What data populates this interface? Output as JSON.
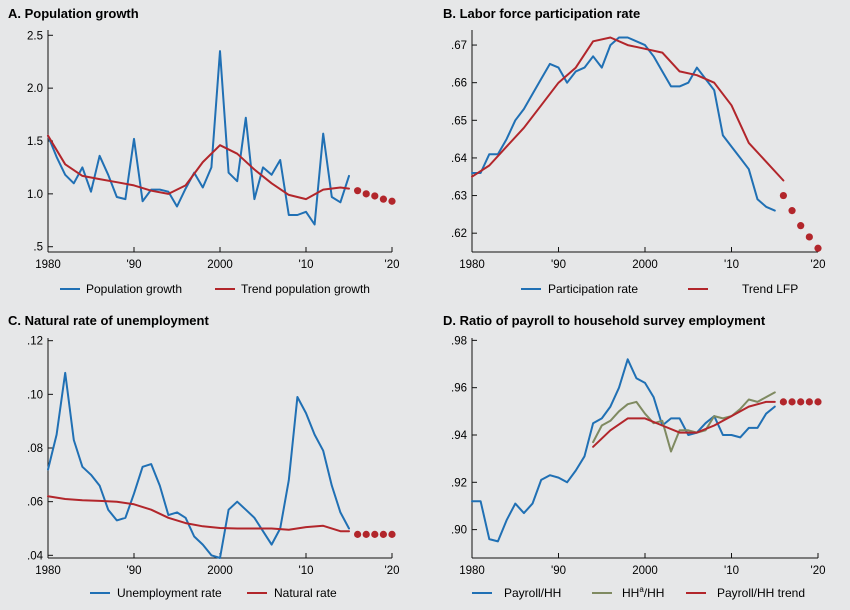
{
  "colors": {
    "blue": "#2070b4",
    "red": "#b2262b",
    "green": "#7f8a61",
    "bg": "#e6e7e8"
  },
  "chart_data": [
    {
      "type": "line",
      "title": "A. Population growth",
      "xlim": [
        1980,
        2020
      ],
      "ylim": [
        0.45,
        2.55
      ],
      "xticks": [
        1980,
        1990,
        2000,
        2010,
        2020
      ],
      "xtick_labels": [
        "1980",
        "'90",
        "2000",
        "'10",
        "'20"
      ],
      "yticks": [
        0.5,
        1.0,
        1.5,
        2.0,
        2.5
      ],
      "ytick_labels": [
        ".5",
        "1.0",
        "1.5",
        "2.0",
        "2.5"
      ],
      "series": [
        {
          "name": "Population growth",
          "style": "line",
          "color": "blue",
          "x": [
            1980,
            1981,
            1982,
            1983,
            1984,
            1985,
            1986,
            1987,
            1988,
            1989,
            1990,
            1991,
            1992,
            1993,
            1994,
            1995,
            1996,
            1997,
            1998,
            1999,
            2000,
            2001,
            2002,
            2003,
            2004,
            2005,
            2006,
            2007,
            2008,
            2009,
            2010,
            2011,
            2012,
            2013,
            2014,
            2015
          ],
          "y": [
            1.55,
            1.35,
            1.18,
            1.1,
            1.25,
            1.02,
            1.36,
            1.18,
            0.97,
            0.95,
            1.52,
            0.93,
            1.04,
            1.04,
            1.02,
            0.88,
            1.05,
            1.2,
            1.06,
            1.25,
            2.35,
            1.2,
            1.12,
            1.72,
            0.95,
            1.25,
            1.18,
            1.32,
            0.8,
            0.8,
            0.83,
            0.71,
            1.57,
            0.97,
            0.92,
            1.17
          ]
        },
        {
          "name": "Trend population growth",
          "style": "line",
          "color": "red",
          "x": [
            1980,
            1982,
            1984,
            1986,
            1988,
            1990,
            1992,
            1994,
            1996,
            1998,
            2000,
            2002,
            2004,
            2006,
            2008,
            2010,
            2012,
            2014,
            2015
          ],
          "y": [
            1.55,
            1.28,
            1.17,
            1.14,
            1.11,
            1.08,
            1.03,
            1.0,
            1.08,
            1.3,
            1.46,
            1.38,
            1.23,
            1.1,
            0.99,
            0.95,
            1.04,
            1.06,
            1.05
          ]
        },
        {
          "name": "projection",
          "style": "dots",
          "color": "red",
          "x": [
            2016,
            2017,
            2018,
            2019,
            2020
          ],
          "y": [
            1.03,
            1.0,
            0.98,
            0.95,
            0.93
          ]
        }
      ],
      "legend": [
        "Population growth",
        "Trend population growth"
      ]
    },
    {
      "type": "line",
      "title": "B. Labor force participation rate",
      "xlim": [
        1980,
        2020
      ],
      "ylim": [
        0.615,
        0.674
      ],
      "xticks": [
        1980,
        1990,
        2000,
        2010,
        2020
      ],
      "xtick_labels": [
        "1980",
        "'90",
        "2000",
        "'10",
        "'20"
      ],
      "yticks": [
        0.62,
        0.63,
        0.64,
        0.65,
        0.66,
        0.67
      ],
      "ytick_labels": [
        ".62",
        ".63",
        ".64",
        ".65",
        ".66",
        ".67"
      ],
      "series": [
        {
          "name": "Participation rate",
          "style": "line",
          "color": "blue",
          "x": [
            1980,
            1981,
            1982,
            1983,
            1984,
            1985,
            1986,
            1987,
            1988,
            1989,
            1990,
            1991,
            1992,
            1993,
            1994,
            1995,
            1996,
            1997,
            1998,
            1999,
            2000,
            2001,
            2002,
            2003,
            2004,
            2005,
            2006,
            2007,
            2008,
            2009,
            2010,
            2011,
            2012,
            2013,
            2014,
            2015
          ],
          "y": [
            0.636,
            0.636,
            0.641,
            0.641,
            0.645,
            0.65,
            0.653,
            0.657,
            0.661,
            0.665,
            0.664,
            0.66,
            0.663,
            0.664,
            0.667,
            0.664,
            0.67,
            0.672,
            0.672,
            0.671,
            0.67,
            0.667,
            0.663,
            0.659,
            0.659,
            0.66,
            0.664,
            0.661,
            0.658,
            0.646,
            0.643,
            0.64,
            0.637,
            0.629,
            0.627,
            0.626
          ]
        },
        {
          "name": "Trend LFP",
          "style": "line",
          "color": "red",
          "x": [
            1980,
            1982,
            1984,
            1986,
            1988,
            1990,
            1992,
            1994,
            1996,
            1998,
            2000,
            2002,
            2004,
            2006,
            2008,
            2010,
            2012,
            2014,
            2016
          ],
          "y": [
            0.635,
            0.638,
            0.643,
            0.648,
            0.654,
            0.66,
            0.664,
            0.671,
            0.672,
            0.67,
            0.669,
            0.668,
            0.663,
            0.662,
            0.66,
            0.654,
            0.644,
            0.639,
            0.634
          ]
        },
        {
          "name": "projection",
          "style": "dots",
          "color": "red",
          "x": [
            2016,
            2017,
            2018,
            2019,
            2020
          ],
          "y": [
            0.63,
            0.626,
            0.622,
            0.619,
            0.616
          ]
        }
      ],
      "legend": [
        "Participation rate",
        "Trend LFP"
      ]
    },
    {
      "type": "line",
      "title": "C. Natural rate of unemployment",
      "xlim": [
        1980,
        2020
      ],
      "ylim": [
        0.039,
        0.121
      ],
      "xticks": [
        1980,
        1990,
        2000,
        2010,
        2020
      ],
      "xtick_labels": [
        "1980",
        "'90",
        "2000",
        "'10",
        "'20"
      ],
      "yticks": [
        0.04,
        0.06,
        0.08,
        0.1,
        0.12
      ],
      "ytick_labels": [
        ".04",
        ".06",
        ".08",
        ".10",
        ".12"
      ],
      "series": [
        {
          "name": "Unemployment rate",
          "style": "line",
          "color": "blue",
          "x": [
            1980,
            1981,
            1982,
            1983,
            1984,
            1985,
            1986,
            1987,
            1988,
            1989,
            1990,
            1991,
            1992,
            1993,
            1994,
            1995,
            1996,
            1997,
            1998,
            1999,
            2000,
            2001,
            2002,
            2003,
            2004,
            2005,
            2006,
            2007,
            2008,
            2009,
            2010,
            2011,
            2012,
            2013,
            2014,
            2015
          ],
          "y": [
            0.072,
            0.085,
            0.108,
            0.083,
            0.073,
            0.07,
            0.066,
            0.057,
            0.053,
            0.054,
            0.063,
            0.073,
            0.074,
            0.066,
            0.055,
            0.056,
            0.054,
            0.047,
            0.044,
            0.04,
            0.039,
            0.057,
            0.06,
            0.057,
            0.054,
            0.049,
            0.044,
            0.05,
            0.068,
            0.099,
            0.093,
            0.085,
            0.079,
            0.066,
            0.056,
            0.05
          ]
        },
        {
          "name": "Natural rate",
          "style": "line",
          "color": "red",
          "x": [
            1980,
            1982,
            1984,
            1986,
            1988,
            1990,
            1992,
            1994,
            1996,
            1998,
            2000,
            2002,
            2004,
            2006,
            2008,
            2010,
            2012,
            2014,
            2015
          ],
          "y": [
            0.062,
            0.061,
            0.0605,
            0.0603,
            0.06,
            0.059,
            0.057,
            0.054,
            0.052,
            0.0508,
            0.0502,
            0.05,
            0.05,
            0.05,
            0.0495,
            0.0505,
            0.051,
            0.049,
            0.049
          ]
        },
        {
          "name": "projection",
          "style": "dots",
          "color": "red",
          "x": [
            2016,
            2017,
            2018,
            2019,
            2020
          ],
          "y": [
            0.0478,
            0.0478,
            0.0478,
            0.0478,
            0.0478
          ]
        }
      ],
      "legend": [
        "Unemployment rate",
        "Natural rate"
      ]
    },
    {
      "type": "line",
      "title": "D. Ratio of payroll to household survey employment",
      "xlim": [
        1980,
        2020
      ],
      "ylim": [
        0.888,
        0.981
      ],
      "xticks": [
        1980,
        1990,
        2000,
        2010,
        2020
      ],
      "xtick_labels": [
        "1980",
        "'90",
        "2000",
        "'10",
        "'20"
      ],
      "yticks": [
        0.9,
        0.92,
        0.94,
        0.96,
        0.98
      ],
      "ytick_labels": [
        ".90",
        ".92",
        ".94",
        ".96",
        ".98"
      ],
      "series": [
        {
          "name": "Payroll/HH",
          "style": "line",
          "color": "blue",
          "x": [
            1980,
            1981,
            1982,
            1983,
            1984,
            1985,
            1986,
            1987,
            1988,
            1989,
            1990,
            1991,
            1992,
            1993,
            1994,
            1995,
            1996,
            1997,
            1998,
            1999,
            2000,
            2001,
            2002,
            2003,
            2004,
            2005,
            2006,
            2007,
            2008,
            2009,
            2010,
            2011,
            2012,
            2013,
            2014,
            2015
          ],
          "y": [
            0.912,
            0.912,
            0.896,
            0.895,
            0.904,
            0.911,
            0.907,
            0.911,
            0.921,
            0.923,
            0.922,
            0.92,
            0.925,
            0.931,
            0.945,
            0.947,
            0.952,
            0.96,
            0.972,
            0.964,
            0.962,
            0.956,
            0.944,
            0.947,
            0.947,
            0.94,
            0.941,
            0.945,
            0.948,
            0.94,
            0.94,
            0.939,
            0.943,
            0.943,
            0.949,
            0.952
          ]
        },
        {
          "name": "HH^a/HH",
          "style": "line",
          "color": "green",
          "x": [
            1994,
            1995,
            1996,
            1997,
            1998,
            1999,
            2000,
            2001,
            2002,
            2003,
            2004,
            2005,
            2006,
            2007,
            2008,
            2009,
            2010,
            2011,
            2012,
            2013,
            2014,
            2015
          ],
          "y": [
            0.937,
            0.944,
            0.946,
            0.95,
            0.953,
            0.954,
            0.949,
            0.945,
            0.946,
            0.933,
            0.942,
            0.942,
            0.941,
            0.942,
            0.948,
            0.947,
            0.948,
            0.951,
            0.955,
            0.954,
            0.956,
            0.958
          ]
        },
        {
          "name": "Payroll/HH trend",
          "style": "line",
          "color": "red",
          "x": [
            1994,
            1996,
            1998,
            2000,
            2002,
            2004,
            2006,
            2008,
            2010,
            2012,
            2014,
            2015
          ],
          "y": [
            0.935,
            0.942,
            0.947,
            0.947,
            0.944,
            0.941,
            0.941,
            0.944,
            0.948,
            0.952,
            0.954,
            0.954
          ]
        },
        {
          "name": "projection",
          "style": "dots",
          "color": "red",
          "x": [
            2016,
            2017,
            2018,
            2019,
            2020
          ],
          "y": [
            0.954,
            0.954,
            0.954,
            0.954,
            0.954
          ]
        }
      ],
      "legend": [
        "Payroll/HH",
        "HH^a/HH",
        "Payroll/HH trend"
      ]
    }
  ]
}
